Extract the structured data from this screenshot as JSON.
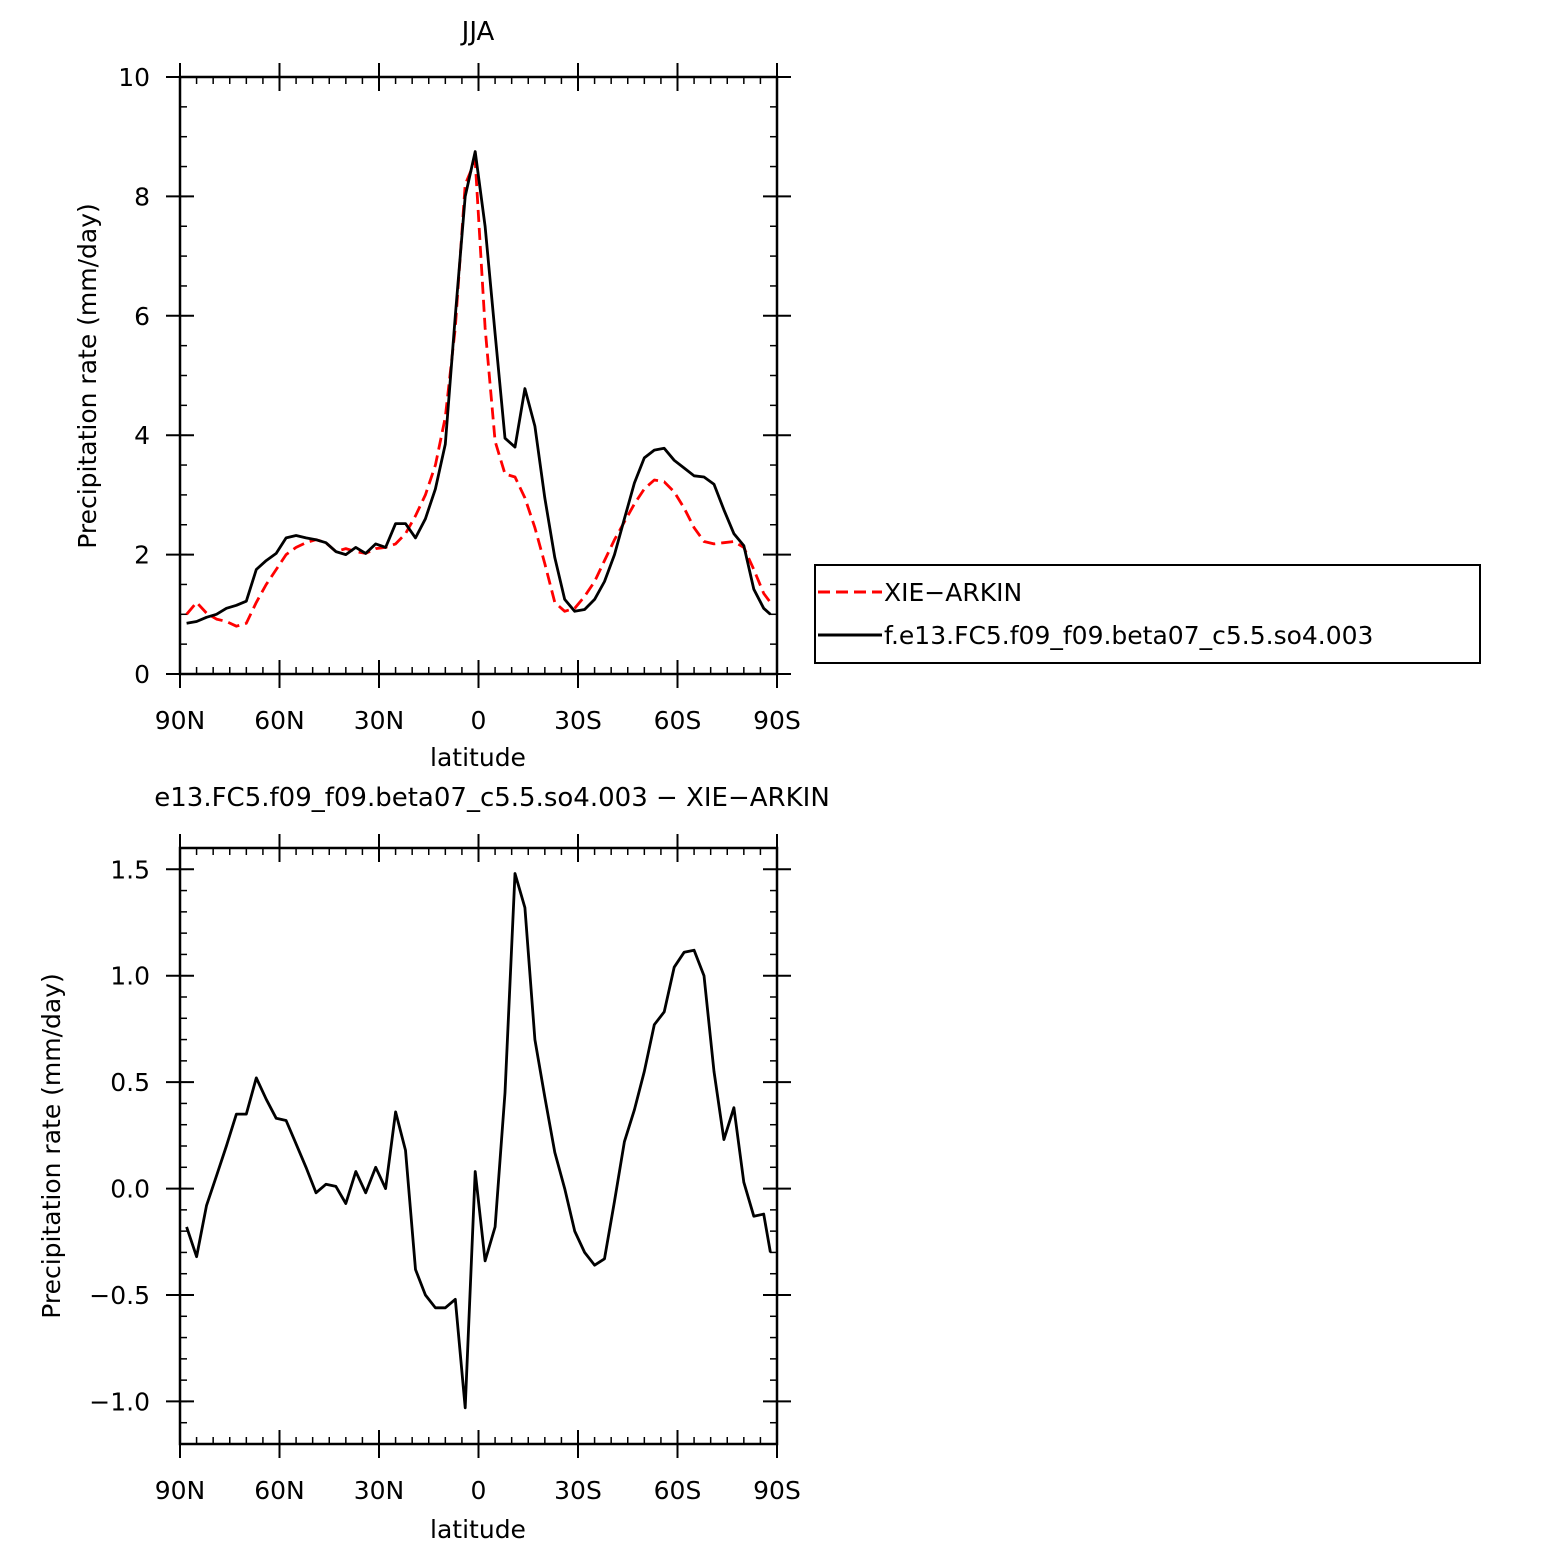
{
  "chart_data": [
    {
      "type": "line",
      "title": "JJA",
      "xlabel": "latitude",
      "ylabel": "Precipitation rate (mm/day)",
      "xlim": [
        90,
        -90
      ],
      "ylim": [
        0,
        10
      ],
      "x_ticks": [
        90,
        60,
        30,
        0,
        -30,
        -60,
        -90
      ],
      "x_tick_labels": [
        "90N",
        "60N",
        "30N",
        "0",
        "30S",
        "60S",
        "90S"
      ],
      "y_ticks": [
        0,
        2,
        4,
        6,
        8,
        10
      ],
      "y_tick_labels": [
        "0",
        "2",
        "4",
        "6",
        "8",
        "10"
      ],
      "legend_position": "right",
      "series": [
        {
          "name": "XIE−ARKIN",
          "color": "#ff0000",
          "dash": "dashed",
          "x": [
            88,
            85,
            82,
            79,
            76,
            73,
            70,
            67,
            64,
            61,
            58,
            55,
            52,
            49,
            46,
            43,
            40,
            37,
            34,
            31,
            28,
            25,
            22,
            19,
            16,
            13,
            10,
            7,
            4,
            1,
            -2,
            -5,
            -8,
            -11,
            -14,
            -17,
            -20,
            -23,
            -26,
            -29,
            -32,
            -35,
            -38,
            -41,
            -44,
            -47,
            -50,
            -53,
            -56,
            -59,
            -62,
            -65,
            -68,
            -71,
            -74,
            -77,
            -80,
            -83,
            -86,
            -88
          ],
          "y": [
            1.0,
            1.2,
            1.02,
            0.92,
            0.88,
            0.8,
            0.85,
            1.2,
            1.5,
            1.75,
            2.0,
            2.12,
            2.2,
            2.25,
            2.2,
            2.05,
            2.1,
            2.05,
            2.02,
            2.1,
            2.12,
            2.18,
            2.35,
            2.65,
            3.0,
            3.5,
            4.3,
            5.8,
            8.2,
            8.6,
            5.8,
            3.9,
            3.35,
            3.3,
            2.95,
            2.45,
            1.85,
            1.2,
            1.05,
            1.1,
            1.3,
            1.55,
            1.9,
            2.25,
            2.55,
            2.85,
            3.1,
            3.25,
            3.22,
            3.05,
            2.78,
            2.45,
            2.22,
            2.18,
            2.2,
            2.22,
            2.12,
            1.75,
            1.35,
            1.2
          ]
        },
        {
          "name": "f.e13.FC5.f09_f09.beta07_c5.5.so4.003",
          "color": "#000000",
          "dash": "solid",
          "x": [
            88,
            85,
            82,
            79,
            76,
            73,
            70,
            67,
            64,
            61,
            58,
            55,
            52,
            49,
            46,
            43,
            40,
            37,
            34,
            31,
            28,
            25,
            22,
            19,
            16,
            13,
            10,
            7,
            4,
            1,
            -2,
            -5,
            -8,
            -11,
            -14,
            -17,
            -20,
            -23,
            -26,
            -29,
            -32,
            -35,
            -38,
            -41,
            -44,
            -47,
            -50,
            -53,
            -56,
            -59,
            -62,
            -65,
            -68,
            -71,
            -74,
            -77,
            -80,
            -83,
            -86,
            -88
          ],
          "y": [
            0.85,
            0.88,
            0.95,
            1.0,
            1.1,
            1.15,
            1.22,
            1.75,
            1.9,
            2.02,
            2.28,
            2.32,
            2.28,
            2.25,
            2.2,
            2.05,
            2.0,
            2.12,
            2.02,
            2.18,
            2.12,
            2.52,
            2.52,
            2.28,
            2.6,
            3.1,
            3.85,
            6.0,
            8.0,
            8.75,
            7.5,
            5.7,
            3.95,
            3.8,
            4.78,
            4.15,
            2.95,
            1.95,
            1.25,
            1.05,
            1.08,
            1.25,
            1.55,
            2.0,
            2.6,
            3.2,
            3.62,
            3.75,
            3.78,
            3.58,
            3.45,
            3.32,
            3.3,
            3.18,
            2.75,
            2.35,
            2.15,
            1.42,
            1.1,
            1.0
          ]
        }
      ]
    },
    {
      "type": "line",
      "title": "e13.FC5.f09_f09.beta07_c5.5.so4.003 − XIE−ARKIN",
      "xlabel": "latitude",
      "ylabel": "Precipitation rate (mm/day)",
      "xlim": [
        90,
        -90
      ],
      "ylim": [
        -1.2,
        1.6
      ],
      "x_ticks": [
        90,
        60,
        30,
        0,
        -30,
        -60,
        -90
      ],
      "x_tick_labels": [
        "90N",
        "60N",
        "30N",
        "0",
        "30S",
        "60S",
        "90S"
      ],
      "y_ticks": [
        -1.0,
        -0.5,
        0.0,
        0.5,
        1.0,
        1.5
      ],
      "y_tick_labels": [
        "−1.0",
        "−0.5",
        "0.0",
        "0.5",
        "1.0",
        "1.5"
      ],
      "series": [
        {
          "color": "#000000",
          "dash": "solid",
          "x": [
            88,
            85,
            82,
            79,
            76,
            73,
            70,
            67,
            64,
            61,
            58,
            55,
            52,
            49,
            46,
            43,
            40,
            37,
            34,
            31,
            28,
            25,
            22,
            19,
            16,
            13,
            10,
            7,
            4,
            1,
            -2,
            -5,
            -8,
            -11,
            -14,
            -17,
            -20,
            -23,
            -26,
            -29,
            -32,
            -35,
            -38,
            -41,
            -44,
            -47,
            -50,
            -53,
            -56,
            -59,
            -62,
            -65,
            -68,
            -71,
            -74,
            -77,
            -80,
            -83,
            -86,
            -88
          ],
          "y": [
            -0.18,
            -0.32,
            -0.08,
            0.06,
            0.2,
            0.35,
            0.35,
            0.52,
            0.42,
            0.33,
            0.32,
            0.21,
            0.1,
            -0.02,
            0.02,
            0.01,
            -0.07,
            0.08,
            -0.02,
            0.1,
            0.0,
            0.36,
            0.18,
            -0.38,
            -0.5,
            -0.56,
            -0.56,
            -0.52,
            -1.03,
            0.08,
            -0.34,
            -0.18,
            0.45,
            1.48,
            1.32,
            0.7,
            0.43,
            0.17,
            0.0,
            -0.2,
            -0.3,
            -0.36,
            -0.33,
            -0.06,
            0.22,
            0.37,
            0.55,
            0.77,
            0.83,
            1.04,
            1.11,
            1.12,
            1.0,
            0.55,
            0.23,
            0.38,
            0.03,
            -0.13,
            -0.12,
            -0.3
          ]
        }
      ]
    }
  ]
}
